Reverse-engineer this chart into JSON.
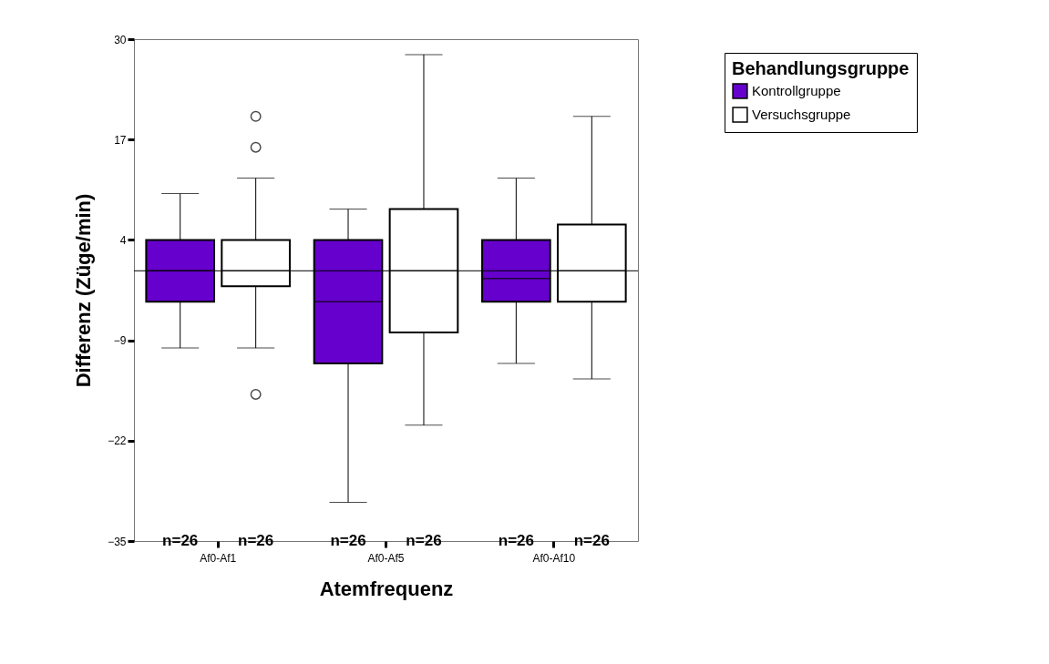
{
  "chart_data": {
    "type": "box",
    "xlabel": "Atemfrequenz",
    "ylabel": "Differenz (Züge/min)",
    "legend_title": "Behandlungsgruppe",
    "legend": "top right",
    "categories": [
      "Af0-Af1",
      "Af0-Af5",
      "Af0-Af10"
    ],
    "series": [
      {
        "name": "Kontrollgruppe",
        "color": "#6600cc",
        "boxes": [
          {
            "low": -10,
            "q1": -4,
            "median": 0,
            "q3": 4,
            "high": 10
          },
          {
            "low": -30,
            "q1": -12,
            "median": -4,
            "q3": 4,
            "high": 8
          },
          {
            "low": -12,
            "q1": -4,
            "median": -1,
            "q3": 4,
            "high": 12
          }
        ]
      },
      {
        "name": "Versuchsgruppe",
        "color": "#ffffff",
        "boxes": [
          {
            "low": -10,
            "q1": -2,
            "median": 0,
            "q3": 4,
            "high": 12,
            "outliers": [
              20,
              16,
              -16
            ]
          },
          {
            "low": -20,
            "q1": -8,
            "median": 0,
            "q3": 8,
            "high": 28
          },
          {
            "low": -14,
            "q1": -4,
            "median": 0,
            "q3": 6,
            "high": 20
          }
        ]
      }
    ],
    "ylim": [
      -35,
      30
    ],
    "yticks": [
      -35,
      -22,
      -9,
      4,
      17,
      30
    ],
    "grid": false,
    "ref_lines": [
      {
        "axis": "y",
        "value": 0
      }
    ],
    "annotations": [
      "n=26",
      "n=26",
      "n=26",
      "n=26",
      "n=26",
      "n=26"
    ]
  }
}
